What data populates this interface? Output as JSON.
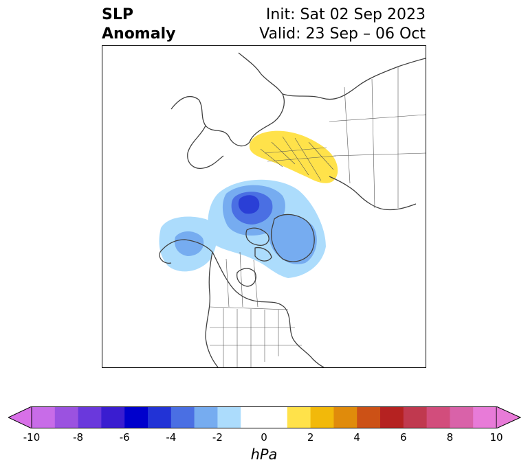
{
  "title": {
    "left": [
      "SLP",
      "Anomaly"
    ],
    "right": [
      "Init: Sat 02 Sep 2023",
      "Valid: 23 Sep – 06 Oct"
    ]
  },
  "map": {
    "projection": "polar-stereographic",
    "region": "Northern Hemisphere (North America / Arctic / Eurasia)",
    "features": [
      {
        "type": "positive-anomaly",
        "color": "#ffe24a",
        "region": "Eastern Europe / Western Russia"
      },
      {
        "type": "negative-anomaly-core",
        "color": "#2a3fd6",
        "region": "Arctic Ocean north of Greenland"
      },
      {
        "type": "negative-anomaly",
        "color": "#79b1f2",
        "region": "Greenland"
      },
      {
        "type": "negative-anomaly",
        "color": "#79b1f2",
        "region": "Gulf of Alaska / Bering"
      }
    ]
  },
  "colorbar": {
    "unit_label": "hPa",
    "extend": "both",
    "levels": [
      -10,
      -9,
      -8,
      -7,
      -6,
      -5,
      -4,
      -3,
      -2,
      -1,
      1,
      2,
      3,
      4,
      5,
      6,
      7,
      8,
      9,
      10
    ],
    "colors": [
      "#c86ce8",
      "#9b52e0",
      "#6a38dc",
      "#3a1dd0",
      "#0000cc",
      "#2233d6",
      "#4a6fe3",
      "#76acf0",
      "#acdcfc",
      "#ffffff",
      "#ffe24a",
      "#f2b90a",
      "#e08b0b",
      "#cc5116",
      "#b52221",
      "#c0394f",
      "#d24d7c",
      "#d962a9",
      "#e87bd8"
    ],
    "under_color": "#d870e8",
    "over_color": "#e87bd8",
    "tick_labels": [
      "-10",
      "-8",
      "-6",
      "-4",
      "-2",
      "0",
      "2",
      "4",
      "6",
      "8",
      "10"
    ]
  }
}
